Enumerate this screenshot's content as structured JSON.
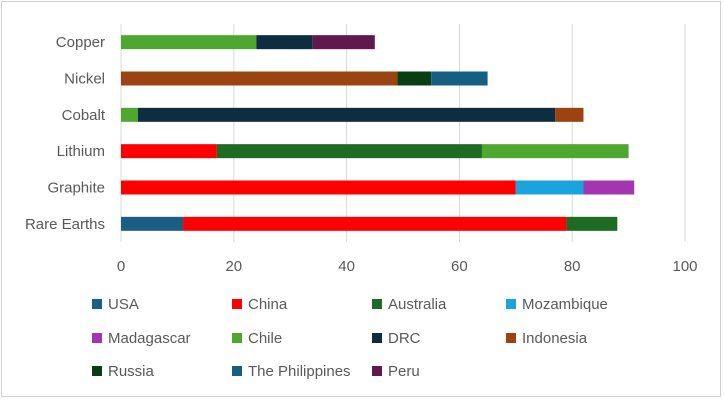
{
  "chart_data": {
    "type": "bar",
    "orientation": "horizontal",
    "stacked": true,
    "categories": [
      "Copper",
      "Nickel",
      "Cobalt",
      "Lithium",
      "Graphite",
      "Rare Earths"
    ],
    "xlim": [
      0,
      100
    ],
    "xticks": [
      0,
      20,
      40,
      60,
      80,
      100
    ],
    "grid": "vertical",
    "legend_position": "bottom",
    "series": [
      {
        "name": "USA",
        "color": "#1a5e84",
        "values": [
          0,
          0,
          0,
          0,
          0,
          11
        ]
      },
      {
        "name": "China",
        "color": "#ff0000",
        "values": [
          0,
          0,
          0,
          17,
          70,
          68
        ]
      },
      {
        "name": "Australia",
        "color": "#1e6b24",
        "values": [
          0,
          0,
          0,
          47,
          0,
          9
        ]
      },
      {
        "name": "Mozambique",
        "color": "#1aa3dc",
        "values": [
          0,
          0,
          0,
          0,
          12,
          0
        ]
      },
      {
        "name": "Madagascar",
        "color": "#a335b0",
        "values": [
          0,
          0,
          0,
          0,
          9,
          0
        ]
      },
      {
        "name": "Chile",
        "color": "#4ea72e",
        "values": [
          24,
          0,
          3,
          26,
          0,
          0
        ]
      },
      {
        "name": "DRC",
        "color": "#0e2d41",
        "values": [
          10,
          0,
          74,
          0,
          0,
          0
        ]
      },
      {
        "name": "Indonesia",
        "color": "#9c4411",
        "values": [
          0,
          49,
          5,
          0,
          0,
          0
        ]
      },
      {
        "name": "Russia",
        "color": "#0b3d12",
        "values": [
          0,
          6,
          0,
          0,
          0,
          0
        ]
      },
      {
        "name": "The Philippines",
        "color": "#155f82",
        "values": [
          0,
          10,
          0,
          0,
          0,
          0
        ]
      },
      {
        "name": "Peru",
        "color": "#60184f",
        "values": [
          11,
          0,
          0,
          0,
          0,
          0
        ]
      }
    ]
  }
}
